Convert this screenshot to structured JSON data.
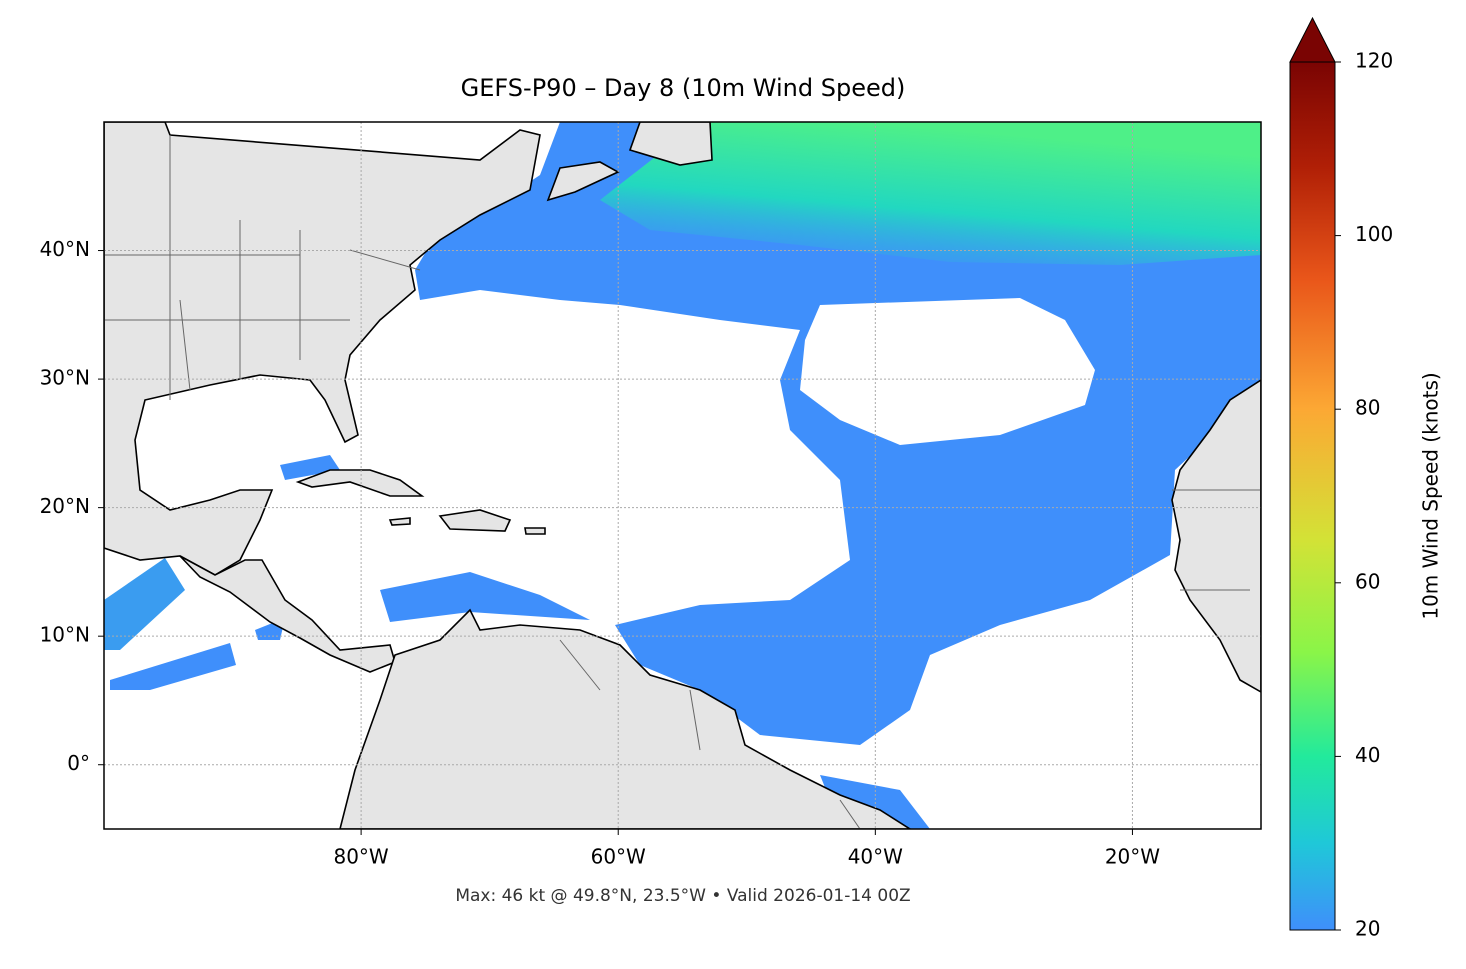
{
  "chart_data": {
    "type": "map",
    "title": "GEFS-P90 – Day 8 (10m Wind Speed)",
    "footnote": "Max: 46 kt @ 49.8°N, 23.5°W • Valid 2026-01-14 00Z",
    "xlim": [
      -100,
      -10
    ],
    "ylim": [
      -5,
      50
    ],
    "xticks": [
      {
        "value": -80,
        "label": "80°W"
      },
      {
        "value": -60,
        "label": "60°W"
      },
      {
        "value": -40,
        "label": "40°W"
      },
      {
        "value": -20,
        "label": "20°W"
      }
    ],
    "yticks": [
      {
        "value": 0,
        "label": "0°"
      },
      {
        "value": 10,
        "label": "10°N"
      },
      {
        "value": 20,
        "label": "20°N"
      },
      {
        "value": 30,
        "label": "30°N"
      },
      {
        "value": 40,
        "label": "40°N"
      }
    ],
    "grid": true,
    "colorbar": {
      "label": "10m Wind Speed (knots)",
      "lim": [
        20,
        120
      ],
      "ticks": [
        20,
        40,
        60,
        80,
        100,
        120
      ]
    }
  }
}
